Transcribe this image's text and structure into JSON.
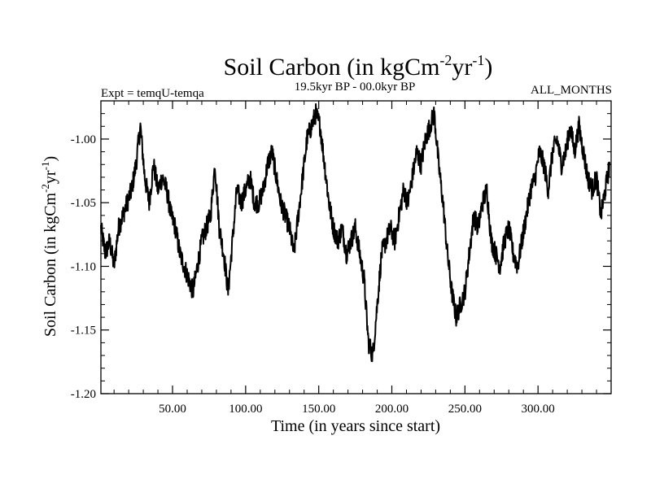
{
  "colors": {
    "background": "#ffffff",
    "line": "#000000"
  },
  "chart_data": {
    "type": "line",
    "title": "Soil Carbon (in kgCm",
    "title_sup1": "-2",
    "title_mid": "yr",
    "title_sup2": "-1",
    "title_end": ")",
    "subtitle_left": "Expt = temqU-temqa",
    "subtitle_center": "19.5kyr BP - 00.0kyr BP",
    "subtitle_right": "ALL_MONTHS",
    "xlabel": "Time (in years since start)",
    "ylabel_parts": [
      "Soil Carbon (in kgCm",
      "-2",
      "yr",
      "-1",
      ")"
    ],
    "xlim": [
      1,
      350
    ],
    "ylim": [
      -1.2,
      -0.97
    ],
    "xticks": [
      50,
      100,
      150,
      200,
      250,
      300
    ],
    "xtick_labels": [
      "50.00",
      "100.00",
      "150.00",
      "200.00",
      "250.00",
      "300.00"
    ],
    "yticks": [
      -1.0,
      -1.05,
      -1.1,
      -1.15,
      -1.2
    ],
    "ytick_labels": [
      "-1.00",
      "-1.05",
      "-1.10",
      "-1.15",
      "-1.20"
    ],
    "series": [
      {
        "name": "Soil Carbon",
        "x": [
          1,
          4,
          7,
          10,
          13,
          16,
          19,
          22,
          25,
          28,
          31,
          34,
          37,
          40,
          43,
          46,
          49,
          52,
          55,
          58,
          61,
          64,
          67,
          70,
          73,
          76,
          79,
          82,
          85,
          88,
          91,
          94,
          97,
          100,
          103,
          106,
          109,
          112,
          115,
          118,
          121,
          124,
          127,
          130,
          133,
          136,
          139,
          142,
          145,
          148,
          151,
          154,
          157,
          160,
          163,
          166,
          169,
          172,
          175,
          178,
          181,
          184,
          187,
          190,
          193,
          196,
          199,
          202,
          205,
          208,
          211,
          214,
          217,
          220,
          223,
          226,
          229,
          232,
          235,
          238,
          241,
          244,
          247,
          250,
          253,
          256,
          259,
          262,
          265,
          268,
          271,
          274,
          277,
          280,
          283,
          286,
          289,
          292,
          295,
          298,
          301,
          304,
          307,
          310,
          313,
          316,
          319,
          322,
          325,
          328,
          331,
          334,
          337,
          340,
          343,
          346,
          349
        ],
        "y": [
          -1.07,
          -1.09,
          -1.08,
          -1.1,
          -1.07,
          -1.06,
          -1.05,
          -1.04,
          -1.02,
          -0.99,
          -1.03,
          -1.05,
          -1.02,
          -1.04,
          -1.03,
          -1.04,
          -1.06,
          -1.07,
          -1.09,
          -1.1,
          -1.11,
          -1.12,
          -1.1,
          -1.08,
          -1.07,
          -1.06,
          -1.02,
          -1.07,
          -1.09,
          -1.12,
          -1.08,
          -1.04,
          -1.05,
          -1.04,
          -1.03,
          -1.05,
          -1.05,
          -1.04,
          -1.02,
          -1.01,
          -1.03,
          -1.05,
          -1.06,
          -1.07,
          -1.09,
          -1.06,
          -1.03,
          -1.0,
          -0.99,
          -0.98,
          -0.99,
          -1.02,
          -1.05,
          -1.07,
          -1.08,
          -1.07,
          -1.09,
          -1.08,
          -1.07,
          -1.09,
          -1.11,
          -1.16,
          -1.17,
          -1.13,
          -1.09,
          -1.08,
          -1.07,
          -1.08,
          -1.06,
          -1.04,
          -1.05,
          -1.03,
          -1.01,
          -1.02,
          -1.0,
          -0.99,
          -0.98,
          -1.02,
          -1.05,
          -1.09,
          -1.12,
          -1.14,
          -1.13,
          -1.12,
          -1.09,
          -1.06,
          -1.07,
          -1.05,
          -1.04,
          -1.08,
          -1.09,
          -1.1,
          -1.08,
          -1.07,
          -1.09,
          -1.1,
          -1.08,
          -1.06,
          -1.04,
          -1.03,
          -1.01,
          -1.02,
          -1.04,
          -1.01,
          -1.0,
          -1.02,
          -1.01,
          -0.99,
          -1.01,
          -0.99,
          -1.01,
          -1.03,
          -1.04,
          -1.03,
          -1.06,
          -1.04,
          -1.02
        ]
      }
    ]
  }
}
